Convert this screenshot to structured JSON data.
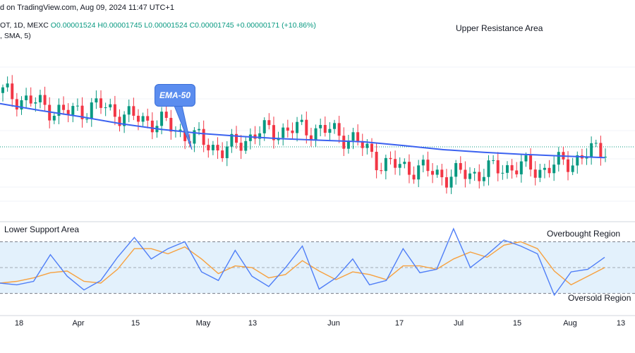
{
  "header": {
    "line1": "d on TradingView.com, Aug 09, 2024 11:47 UTC+1",
    "line2_symbol": "OT, 1D, MEXC",
    "open": "O0.00001524",
    "high": "H0.00001745",
    "low": "L0.00001524",
    "close": "C0.00001745",
    "change": "+0.00000171 (+10.86%)",
    "line3": ", SMA, 5)"
  },
  "annotations": {
    "upper_resistance": "Upper Resistance Area",
    "lower_support": "Lower Support Area",
    "overbought": "Overbought Region",
    "oversold": "Oversold Region",
    "ema_callout": "EMA-50"
  },
  "colors": {
    "up": "#089981",
    "down": "#f23645",
    "ema": "#3b62f0",
    "osc_fast": "#4f7ef7",
    "osc_slow": "#f7a13f",
    "band_fill": "#e3f1fc"
  },
  "chart_data": {
    "type": "line",
    "x_ticks": [
      "18",
      "Apr",
      "15",
      "May",
      "13",
      "Jun",
      "17",
      "Jul",
      "15",
      "Aug",
      "13"
    ],
    "ema_50": [
      1.975e-05,
      1.938e-05,
      1.905e-05,
      1.868e-05,
      1.838e-05,
      1.816e-05,
      1.8e-05,
      1.788e-05,
      1.78e-05,
      1.772e-05,
      1.752e-05,
      1.73e-05,
      1.716e-05,
      1.705e-05,
      1.696e-05,
      1.688e-05
    ],
    "price_close": [
      2.031e-05,
      1.978e-05,
      1.921e-05,
      1.964e-05,
      1.902e-05,
      1.874e-05,
      1.793e-05,
      1.722e-05,
      1.821e-05,
      1.835e-05,
      1.84e-05,
      1.792e-05,
      1.651e-05,
      1.632e-05,
      1.59e-05,
      1.608e-05,
      1.641e-05,
      1.625e-05,
      1.675e-05,
      1.745e-05
    ],
    "oscillator_fast": [
      32,
      30,
      34,
      65,
      40,
      24,
      35,
      62,
      85,
      60,
      72,
      80,
      45,
      35,
      70,
      40,
      28,
      50,
      75,
      25,
      38,
      60,
      30,
      35,
      72,
      44,
      48,
      95,
      50,
      65,
      82,
      75,
      66,
      18,
      45,
      48,
      62
    ],
    "oscillator_slow": [
      32,
      34,
      38,
      44,
      46,
      34,
      32,
      48,
      72,
      72,
      66,
      74,
      60,
      43,
      52,
      50,
      38,
      42,
      58,
      46,
      36,
      45,
      42,
      36,
      52,
      52,
      48,
      60,
      68,
      62,
      76,
      80,
      72,
      46,
      30,
      40,
      50
    ],
    "overbought_level": 80,
    "oversold_level": 20
  }
}
